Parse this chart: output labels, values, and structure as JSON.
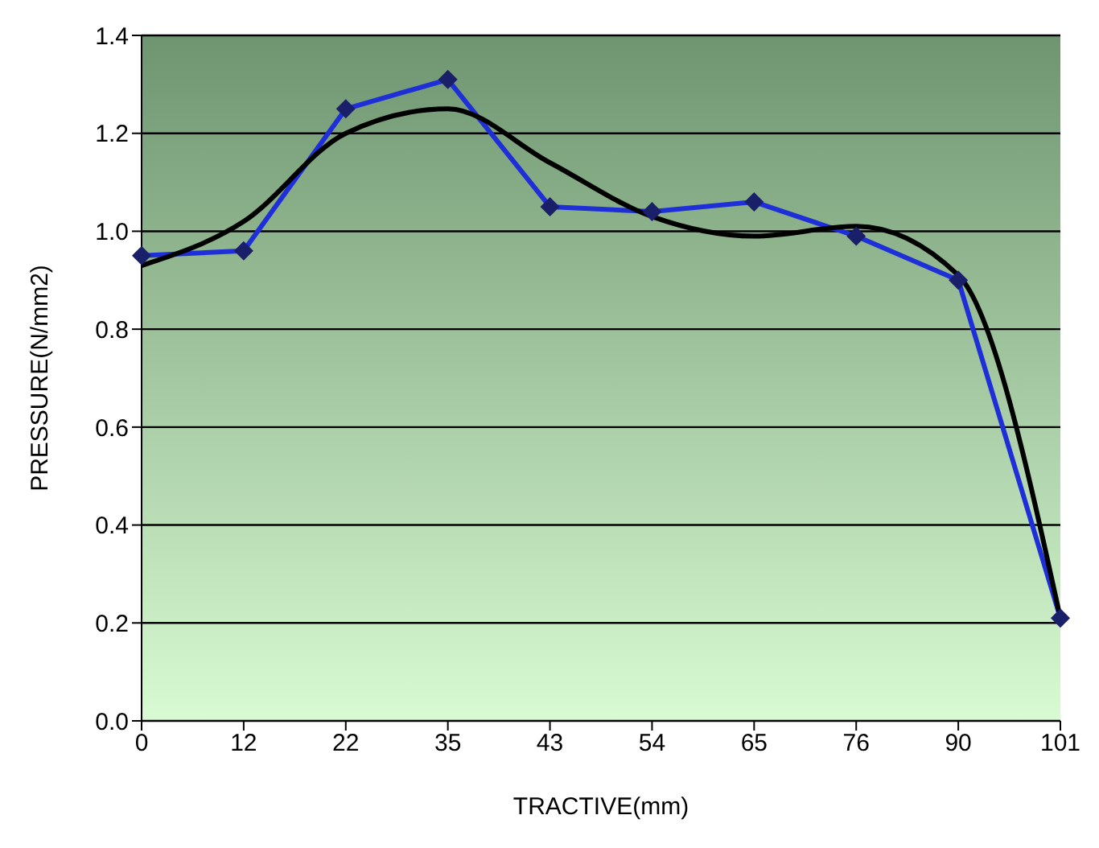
{
  "chart_data": {
    "type": "line",
    "xlabel": "TRACTIVE(mm)",
    "ylabel": "PRESSURE(N/mm2)",
    "categories": [
      "0",
      "12",
      "22",
      "35",
      "43",
      "54",
      "65",
      "76",
      "90",
      "101"
    ],
    "series": [
      {
        "color": "#1f2fd8",
        "marker": "diamond",
        "values": [
          0.95,
          0.96,
          1.25,
          1.31,
          1.05,
          1.04,
          1.06,
          0.99,
          0.9,
          0.21
        ]
      },
      {
        "color": "#000000",
        "marker": "none",
        "values": [
          0.93,
          1.02,
          1.2,
          1.25,
          1.14,
          1.03,
          0.99,
          1.01,
          0.91,
          0.21
        ]
      }
    ],
    "ylim": [
      0,
      1.4
    ],
    "yticks": [
      {
        "value": 0,
        "label": "0.0"
      },
      0.2,
      0.4,
      0.6,
      0.8,
      {
        "value": 1,
        "label": "1.0"
      },
      1.2,
      1.4
    ],
    "grid": "y"
  }
}
